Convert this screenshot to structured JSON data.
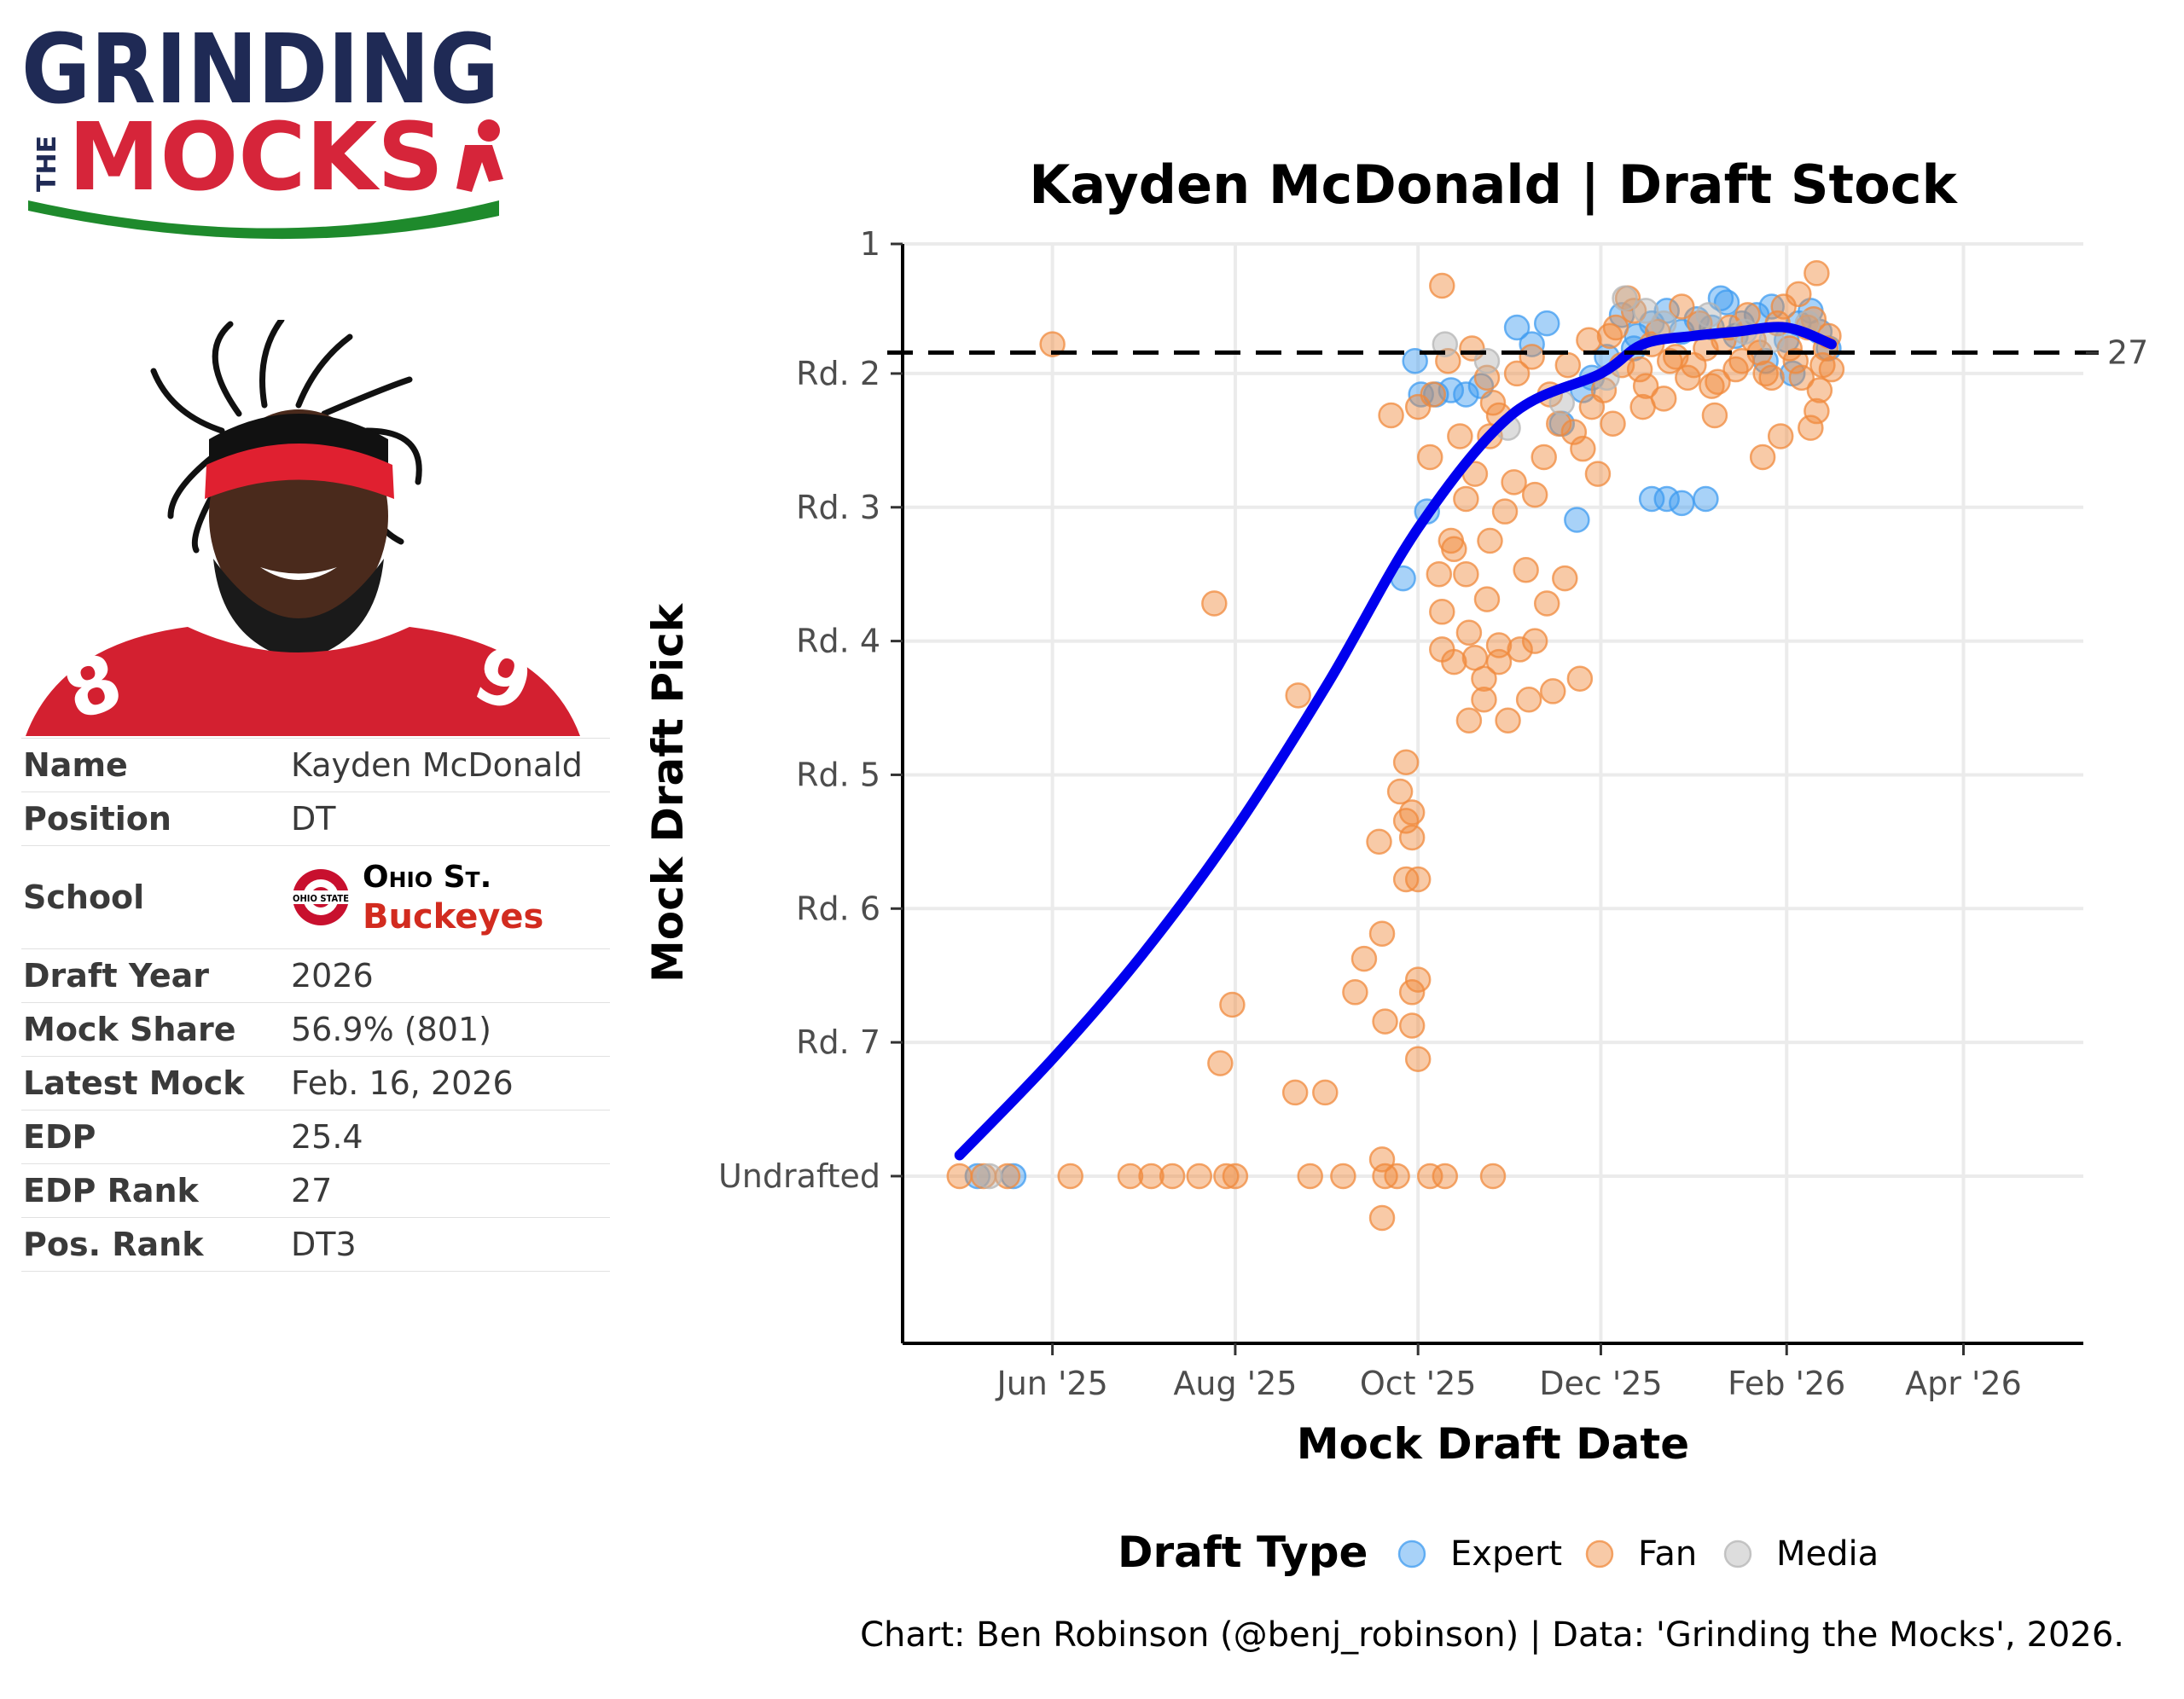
{
  "logo": {
    "line1": "GRINDING",
    "line2": "MOCKS",
    "small": "THE"
  },
  "player": {
    "rows": [
      {
        "key": "Name",
        "value": "Kayden McDonald"
      },
      {
        "key": "Position",
        "value": "DT"
      },
      {
        "key": "School",
        "value": ""
      },
      {
        "key": "Draft Year",
        "value": "2026"
      },
      {
        "key": "Mock Share",
        "value": "56.9% (801)"
      },
      {
        "key": "Latest Mock",
        "value": "Feb. 16, 2026"
      },
      {
        "key": "EDP",
        "value": "25.4"
      },
      {
        "key": "EDP Rank",
        "value": "27"
      },
      {
        "key": "Pos. Rank",
        "value": "DT3"
      }
    ],
    "school_name": "Ohio St.",
    "school_mascot": "Buckeyes",
    "school_logo_text": "OHIO STATE"
  },
  "chart_data": {
    "type": "scatter",
    "title": "Kayden McDonald | Draft Stock",
    "xlabel": "Mock Draft Date",
    "ylabel": "Mock Draft Pick",
    "x_ticks": [
      "2025-06-01",
      "2025-08-01",
      "2025-10-01",
      "2025-12-01",
      "2026-02-01",
      "2026-04-01"
    ],
    "x_tick_labels": [
      "Jun '25",
      "Aug '25",
      "Oct '25",
      "Dec '25",
      "Feb '26",
      "Apr '26"
    ],
    "xlim": [
      "2025-04-12",
      "2026-05-11"
    ],
    "ylim": [
      1,
      264
    ],
    "y_ticks": [
      1,
      32,
      64,
      96,
      128,
      160,
      192,
      224
    ],
    "y_tick_labels": [
      "1",
      "Rd. 2",
      "Rd. 3",
      "Rd. 4",
      "Rd. 5",
      "Rd. 6",
      "Rd. 7",
      "Undrafted"
    ],
    "reference_line": {
      "y": 27,
      "label": "27",
      "style": "dashed"
    },
    "grid": true,
    "colors": {
      "Expert": "#3d9bf0",
      "Fan": "#f08a3c",
      "Media": "#b4b4b4",
      "trend": "#0000ee"
    },
    "legend": {
      "title": "Draft Type",
      "position": "bottom",
      "entries": [
        "Expert",
        "Fan",
        "Media"
      ]
    },
    "series": [
      {
        "name": "Expert",
        "points": [
          [
            "2025-05-07",
            224
          ],
          [
            "2025-05-19",
            224
          ],
          [
            "2025-09-30",
            29
          ],
          [
            "2025-10-02",
            37
          ],
          [
            "2025-10-07",
            37
          ],
          [
            "2025-10-12",
            36
          ],
          [
            "2025-10-17",
            37
          ],
          [
            "2025-10-22",
            35
          ],
          [
            "2025-10-04",
            65
          ],
          [
            "2025-09-26",
            81
          ],
          [
            "2025-11-03",
            21
          ],
          [
            "2025-11-08",
            25
          ],
          [
            "2025-11-13",
            20
          ],
          [
            "2025-11-18",
            44
          ],
          [
            "2025-11-23",
            67
          ],
          [
            "2025-11-28",
            33
          ],
          [
            "2025-12-08",
            18
          ],
          [
            "2025-12-13",
            23
          ],
          [
            "2025-12-18",
            20
          ],
          [
            "2025-12-23",
            17
          ],
          [
            "2025-12-28",
            22
          ],
          [
            "2026-01-02",
            19
          ],
          [
            "2026-01-07",
            21
          ],
          [
            "2026-01-12",
            15
          ],
          [
            "2026-01-17",
            20
          ],
          [
            "2026-01-22",
            18
          ],
          [
            "2026-01-27",
            16
          ],
          [
            "2026-02-01",
            24
          ],
          [
            "2026-02-05",
            20
          ],
          [
            "2026-02-09",
            17
          ],
          [
            "2026-02-12",
            22
          ],
          [
            "2026-02-15",
            26
          ],
          [
            "2025-12-18",
            62
          ],
          [
            "2025-12-23",
            62
          ],
          [
            "2025-12-28",
            63
          ],
          [
            "2026-01-05",
            62
          ],
          [
            "2026-01-10",
            14
          ],
          [
            "2026-01-15",
            23
          ],
          [
            "2025-11-25",
            36
          ],
          [
            "2025-12-03",
            28
          ],
          [
            "2025-12-12",
            26
          ],
          [
            "2026-01-25",
            29
          ],
          [
            "2026-02-03",
            32
          ]
        ]
      },
      {
        "name": "Fan",
        "points": [
          [
            "2025-05-01",
            224
          ],
          [
            "2025-05-09",
            224
          ],
          [
            "2025-05-17",
            224
          ],
          [
            "2025-06-07",
            224
          ],
          [
            "2025-06-27",
            224
          ],
          [
            "2025-07-04",
            224
          ],
          [
            "2025-07-11",
            224
          ],
          [
            "2025-07-20",
            224
          ],
          [
            "2025-07-29",
            224
          ],
          [
            "2025-08-01",
            224
          ],
          [
            "2025-08-26",
            224
          ],
          [
            "2025-09-06",
            224
          ],
          [
            "2025-09-20",
            224
          ],
          [
            "2025-09-24",
            224
          ],
          [
            "2025-10-05",
            224
          ],
          [
            "2025-10-10",
            224
          ],
          [
            "2025-10-26",
            224
          ],
          [
            "2025-09-19",
            220
          ],
          [
            "2025-09-19",
            234
          ],
          [
            "2025-06-01",
            25
          ],
          [
            "2025-07-25",
            87
          ],
          [
            "2025-08-22",
            109
          ],
          [
            "2025-09-13",
            172
          ],
          [
            "2025-09-19",
            166
          ],
          [
            "2025-09-10",
            180
          ],
          [
            "2025-09-29",
            180
          ],
          [
            "2025-10-01",
            177
          ],
          [
            "2025-09-29",
            188
          ],
          [
            "2025-10-01",
            196
          ],
          [
            "2025-07-27",
            197
          ],
          [
            "2025-07-31",
            183
          ],
          [
            "2025-09-20",
            187
          ],
          [
            "2025-08-21",
            204
          ],
          [
            "2025-08-31",
            204
          ],
          [
            "2025-09-18",
            144
          ],
          [
            "2025-09-27",
            125
          ],
          [
            "2025-09-25",
            132
          ],
          [
            "2025-09-27",
            139
          ],
          [
            "2025-09-29",
            137
          ],
          [
            "2025-09-29",
            143
          ],
          [
            "2025-09-27",
            153
          ],
          [
            "2025-10-01",
            153
          ],
          [
            "2025-10-09",
            11
          ],
          [
            "2025-10-11",
            29
          ],
          [
            "2025-10-15",
            47
          ],
          [
            "2025-10-25",
            47
          ],
          [
            "2025-10-20",
            56
          ],
          [
            "2025-10-28",
            42
          ],
          [
            "2025-10-06",
            37
          ],
          [
            "2025-10-08",
            80
          ],
          [
            "2025-10-09",
            98
          ],
          [
            "2025-10-13",
            101
          ],
          [
            "2025-10-18",
            94
          ],
          [
            "2025-10-20",
            100
          ],
          [
            "2025-10-23",
            105
          ],
          [
            "2025-10-28",
            101
          ],
          [
            "2025-10-18",
            115
          ],
          [
            "2025-10-23",
            110
          ],
          [
            "2025-10-31",
            115
          ],
          [
            "2025-10-17",
            80
          ],
          [
            "2025-10-24",
            86
          ],
          [
            "2025-10-28",
            97
          ],
          [
            "2025-11-06",
            79
          ],
          [
            "2025-11-13",
            87
          ],
          [
            "2025-11-19",
            81
          ],
          [
            "2025-11-04",
            98
          ],
          [
            "2025-11-09",
            96
          ],
          [
            "2025-11-07",
            110
          ],
          [
            "2025-11-15",
            108
          ],
          [
            "2025-11-24",
            105
          ],
          [
            "2025-10-09",
            89
          ],
          [
            "2025-10-13",
            74
          ],
          [
            "2025-10-17",
            62
          ],
          [
            "2025-10-25",
            72
          ],
          [
            "2025-10-30",
            65
          ],
          [
            "2025-11-02",
            58
          ],
          [
            "2025-11-09",
            61
          ],
          [
            "2025-11-12",
            52
          ],
          [
            "2025-11-17",
            44
          ],
          [
            "2025-11-22",
            46
          ],
          [
            "2025-11-28",
            40
          ],
          [
            "2025-10-01",
            40
          ],
          [
            "2025-09-22",
            42
          ],
          [
            "2025-10-05",
            52
          ],
          [
            "2025-10-12",
            72
          ],
          [
            "2025-10-24",
            33
          ],
          [
            "2025-10-19",
            26
          ],
          [
            "2025-10-26",
            39
          ],
          [
            "2025-11-03",
            32
          ],
          [
            "2025-11-08",
            28
          ],
          [
            "2025-11-14",
            37
          ],
          [
            "2025-11-20",
            30
          ],
          [
            "2025-11-27",
            24
          ],
          [
            "2025-12-02",
            36
          ],
          [
            "2025-12-06",
            21
          ],
          [
            "2025-12-10",
            14
          ],
          [
            "2025-12-14",
            31
          ],
          [
            "2025-12-18",
            25
          ],
          [
            "2025-12-22",
            38
          ],
          [
            "2025-12-26",
            28
          ],
          [
            "2025-12-30",
            33
          ],
          [
            "2026-01-03",
            20
          ],
          [
            "2026-01-07",
            35
          ],
          [
            "2026-01-11",
            24
          ],
          [
            "2026-01-15",
            31
          ],
          [
            "2026-01-19",
            18
          ],
          [
            "2026-01-23",
            27
          ],
          [
            "2026-01-27",
            33
          ],
          [
            "2026-01-31",
            16
          ],
          [
            "2026-02-04",
            29
          ],
          [
            "2026-02-08",
            21
          ],
          [
            "2026-02-12",
            36
          ],
          [
            "2026-02-14",
            26
          ],
          [
            "2026-02-16",
            31
          ],
          [
            "2025-12-04",
            23
          ],
          [
            "2025-12-08",
            30
          ],
          [
            "2025-12-12",
            17
          ],
          [
            "2025-12-16",
            35
          ],
          [
            "2025-12-20",
            22
          ],
          [
            "2025-12-24",
            29
          ],
          [
            "2025-12-28",
            16
          ],
          [
            "2026-01-01",
            30
          ],
          [
            "2026-01-05",
            26
          ],
          [
            "2026-01-09",
            34
          ],
          [
            "2026-01-13",
            21
          ],
          [
            "2026-01-17",
            29
          ],
          [
            "2026-01-21",
            24
          ],
          [
            "2026-01-25",
            32
          ],
          [
            "2026-01-29",
            20
          ],
          [
            "2026-02-02",
            26
          ],
          [
            "2026-02-06",
            33
          ],
          [
            "2026-02-10",
            19
          ],
          [
            "2026-02-13",
            30
          ],
          [
            "2026-02-15",
            23
          ],
          [
            "2026-02-11",
            8
          ],
          [
            "2026-02-05",
            13
          ],
          [
            "2026-01-30",
            47
          ],
          [
            "2026-01-24",
            52
          ],
          [
            "2026-02-09",
            45
          ],
          [
            "2026-02-11",
            41
          ],
          [
            "2026-01-08",
            42
          ],
          [
            "2025-12-15",
            40
          ],
          [
            "2025-12-05",
            44
          ],
          [
            "2025-11-30",
            56
          ],
          [
            "2025-11-25",
            50
          ]
        ]
      },
      {
        "name": "Media",
        "points": [
          [
            "2025-05-11",
            224
          ],
          [
            "2025-10-10",
            25
          ],
          [
            "2025-10-24",
            29
          ],
          [
            "2025-10-31",
            45
          ],
          [
            "2025-11-18",
            39
          ],
          [
            "2025-12-03",
            33
          ],
          [
            "2025-12-09",
            14
          ],
          [
            "2025-12-16",
            17
          ],
          [
            "2025-12-22",
            20
          ],
          [
            "2026-01-06",
            18
          ],
          [
            "2026-01-18",
            22
          ],
          [
            "2026-01-27",
            24
          ],
          [
            "2026-02-08",
            20
          ]
        ]
      }
    ],
    "trend": [
      [
        "2025-05-01",
        219
      ],
      [
        "2025-06-01",
        196
      ],
      [
        "2025-07-01",
        171
      ],
      [
        "2025-08-01",
        141
      ],
      [
        "2025-09-01",
        106
      ],
      [
        "2025-10-01",
        69
      ],
      [
        "2025-11-01",
        42
      ],
      [
        "2025-12-01",
        32
      ],
      [
        "2025-12-15",
        25
      ],
      [
        "2026-01-01",
        23
      ],
      [
        "2026-01-15",
        22
      ],
      [
        "2026-02-01",
        21
      ],
      [
        "2026-02-16",
        25
      ]
    ],
    "caption": "Chart: Ben Robinson (@benj_robinson) | Data: 'Grinding the Mocks', 2026."
  }
}
